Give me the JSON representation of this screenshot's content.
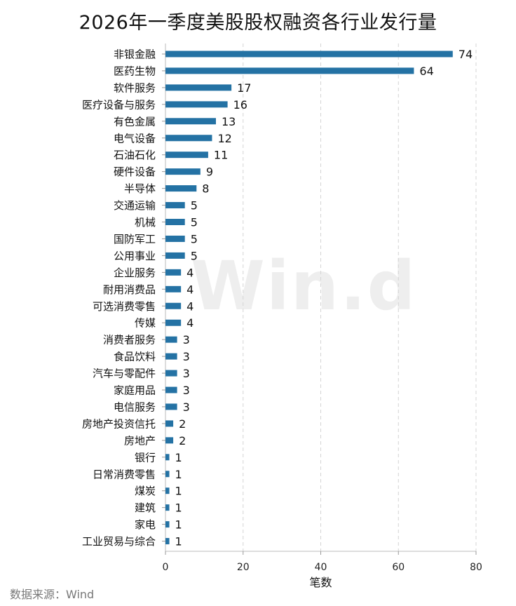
{
  "chart_data": {
    "type": "bar",
    "orientation": "horizontal",
    "title": "2026年一季度美股股权融资各行业发行量",
    "xlabel": "笔数",
    "ylabel": "",
    "xlim": [
      0,
      80
    ],
    "xticks": [
      0,
      20,
      40,
      60,
      80
    ],
    "grid": "vertical dashed",
    "bar_color": "#2472a4",
    "categories": [
      "非银金融",
      "医药生物",
      "软件服务",
      "医疗设备与服务",
      "有色金属",
      "电气设备",
      "石油石化",
      "硬件设备",
      "半导体",
      "交通运输",
      "机械",
      "国防军工",
      "公用事业",
      "企业服务",
      "耐用消费品",
      "可选消费零售",
      "传媒",
      "消费者服务",
      "食品饮料",
      "汽车与零配件",
      "家庭用品",
      "电信服务",
      "房地产投资信托",
      "房地产",
      "银行",
      "日常消费零售",
      "煤炭",
      "建筑",
      "家电",
      "工业贸易与综合"
    ],
    "values": [
      74,
      64,
      17,
      16,
      13,
      12,
      11,
      9,
      8,
      5,
      5,
      5,
      5,
      4,
      4,
      4,
      4,
      3,
      3,
      3,
      3,
      3,
      2,
      2,
      1,
      1,
      1,
      1,
      1,
      1
    ]
  },
  "watermark": "Win.d",
  "source": "数据来源：Wind"
}
